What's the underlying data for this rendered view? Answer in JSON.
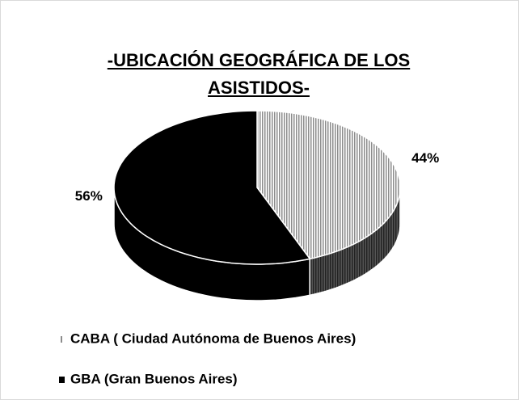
{
  "chart_data": {
    "type": "pie3d",
    "title": "-UBICACIÓN GEOGRÁFICA DE LOS ASISTIDOS-",
    "categories": [
      "CABA ( Ciudad Autónoma de Buenos Aires)",
      "GBA (Gran Buenos Aires)"
    ],
    "values": [
      44,
      56
    ],
    "value_labels": [
      "44%",
      "56%"
    ],
    "colors": [
      "#8c8c8c",
      "#000000"
    ],
    "legend": "bottom"
  }
}
